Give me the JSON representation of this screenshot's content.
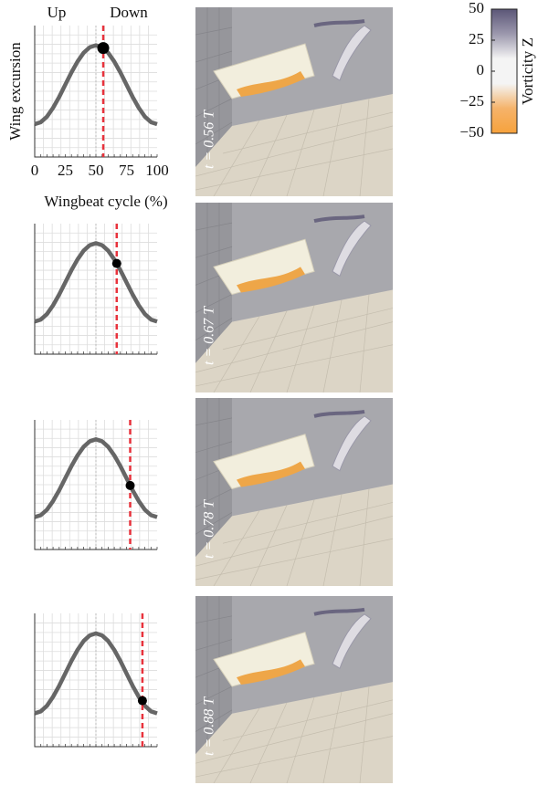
{
  "chart_data": [
    {
      "type": "line",
      "annotations": [
        "Up",
        "Down"
      ],
      "ylabel": "Wing excursion",
      "xlabel": "Wingbeat cycle (%)",
      "annotation": "t = 0.56 T",
      "x": [
        0,
        5,
        10,
        15,
        20,
        25,
        30,
        35,
        40,
        45,
        50,
        55,
        60,
        65,
        70,
        75,
        80,
        85,
        90,
        95,
        100
      ],
      "values": [
        0.25,
        0.265,
        0.307,
        0.374,
        0.457,
        0.55,
        0.643,
        0.726,
        0.793,
        0.835,
        0.85,
        0.835,
        0.793,
        0.726,
        0.643,
        0.55,
        0.457,
        0.374,
        0.307,
        0.265,
        0.25
      ],
      "color": "#666666",
      "marker": {
        "x": 56,
        "value": 0.829,
        "color": "#000000"
      },
      "line_color": "#e8323c",
      "xlim": [
        0,
        100
      ],
      "ylim": [
        0,
        1
      ],
      "xticks": [
        0,
        25,
        50,
        75,
        100
      ],
      "grid": true
    },
    {
      "type": "line",
      "annotation": "t = 0.67 T",
      "x": [
        0,
        5,
        10,
        15,
        20,
        25,
        30,
        35,
        40,
        45,
        50,
        55,
        60,
        65,
        70,
        75,
        80,
        85,
        90,
        95,
        100
      ],
      "values": [
        0.25,
        0.265,
        0.307,
        0.374,
        0.457,
        0.55,
        0.643,
        0.726,
        0.793,
        0.835,
        0.85,
        0.835,
        0.793,
        0.726,
        0.643,
        0.55,
        0.457,
        0.374,
        0.307,
        0.265,
        0.25
      ],
      "color": "#666666",
      "marker": {
        "x": 67,
        "value": 0.695,
        "color": "#000000"
      },
      "line_color": "#e8323c",
      "xlim": [
        0,
        100
      ],
      "ylim": [
        0,
        1
      ],
      "grid": true
    },
    {
      "type": "line",
      "annotation": "t = 0.78 T",
      "x": [
        0,
        5,
        10,
        15,
        20,
        25,
        30,
        35,
        40,
        45,
        50,
        55,
        60,
        65,
        70,
        75,
        80,
        85,
        90,
        95,
        100
      ],
      "values": [
        0.25,
        0.265,
        0.307,
        0.374,
        0.457,
        0.55,
        0.643,
        0.726,
        0.793,
        0.835,
        0.85,
        0.835,
        0.793,
        0.726,
        0.643,
        0.55,
        0.457,
        0.374,
        0.307,
        0.265,
        0.25
      ],
      "color": "#666666",
      "marker": {
        "x": 78,
        "value": 0.494,
        "color": "#000000"
      },
      "line_color": "#e8323c",
      "xlim": [
        0,
        100
      ],
      "ylim": [
        0,
        1
      ],
      "grid": true
    },
    {
      "type": "line",
      "annotation": "t = 0.88 T",
      "x": [
        0,
        5,
        10,
        15,
        20,
        25,
        30,
        35,
        40,
        45,
        50,
        55,
        60,
        65,
        70,
        75,
        80,
        85,
        90,
        95,
        100
      ],
      "values": [
        0.25,
        0.265,
        0.307,
        0.374,
        0.457,
        0.55,
        0.643,
        0.726,
        0.793,
        0.835,
        0.85,
        0.835,
        0.793,
        0.726,
        0.643,
        0.55,
        0.457,
        0.374,
        0.307,
        0.265,
        0.25
      ],
      "color": "#666666",
      "marker": {
        "x": 88,
        "value": 0.345,
        "color": "#000000"
      },
      "line_color": "#e8323c",
      "xlim": [
        0,
        100
      ],
      "ylim": [
        0,
        1
      ],
      "grid": true
    },
    {
      "type": "colorbar",
      "ylabel": "Vorticity Z",
      "colors": [
        "#5b5677",
        "#9c98ad",
        "#f4f4f4",
        "#f4f4f4",
        "#f5b36a",
        "#f7a23c"
      ],
      "ylim": [
        -50,
        50
      ],
      "yticks": [
        50,
        25,
        0,
        {
          "value": -25,
          "label": "−25"
        },
        {
          "value": -50,
          "label": "−50"
        }
      ]
    }
  ]
}
